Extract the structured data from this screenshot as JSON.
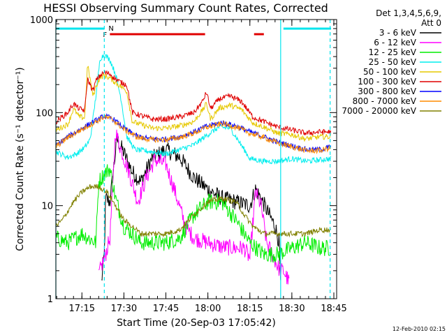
{
  "chart_data": {
    "type": "line",
    "title": "HESSI Observing Summary Count Rates, Corrected",
    "xlabel": "Start Time (20-Sep-03 17:05:42)",
    "ylabel": "Corrected Count Rate (s⁻¹ detector⁻¹)",
    "yscale": "log",
    "ylim": [
      1,
      1000
    ],
    "xlim": [
      "17:05:42",
      "18:46:00"
    ],
    "yticks": [
      {
        "v": 1,
        "label": "1"
      },
      {
        "v": 10,
        "label": "10"
      },
      {
        "v": 100,
        "label": "100"
      },
      {
        "v": 1000,
        "label": "1000"
      }
    ],
    "xticks": [
      {
        "t": "17:15",
        "label": "17:15"
      },
      {
        "t": "17:30",
        "label": "17:30"
      },
      {
        "t": "17:45",
        "label": "17:45"
      },
      {
        "t": "18:00",
        "label": "18:00"
      },
      {
        "t": "18:15",
        "label": "18:15"
      },
      {
        "t": "18:30",
        "label": "18:30"
      },
      {
        "t": "18:45",
        "label": "18:45"
      }
    ],
    "legend_header": [
      "Det 1,3,4,5,6,9,",
      "Att 0"
    ],
    "legend_position": "right",
    "footer_date": "12-Feb-2010 02:15",
    "flag_bars": [
      {
        "label": "",
        "color": "#00e5ee",
        "segments": [
          [
            "17:05:42",
            "17:23:00"
          ],
          [
            "18:27:00",
            "18:44:00"
          ]
        ]
      },
      {
        "label": "F",
        "color": "#e00000",
        "segments": [
          [
            "17:25:00",
            "17:59:00"
          ],
          [
            "18:16:30",
            "18:20:00"
          ]
        ]
      }
    ],
    "flag_markers": [
      {
        "label": "N",
        "t": "17:25:30",
        "color": "#00e5ee"
      }
    ],
    "vlines": [
      {
        "t": "17:05:42",
        "color": "#00e5ee",
        "style": "solid"
      },
      {
        "t": "17:23:00",
        "color": "#00e5ee",
        "style": "dashed"
      },
      {
        "t": "18:26:00",
        "color": "#00e5ee",
        "style": "solid"
      },
      {
        "t": "18:43:40",
        "color": "#00e5ee",
        "style": "dashed"
      }
    ],
    "series": [
      {
        "name": "3 - 6 keV",
        "color": "#000000",
        "t0": "17:22:00",
        "times": [
          "17:22:00",
          "17:23:00",
          "17:23:30",
          "17:25:00",
          "17:27:30",
          "17:30:00",
          "17:33:00",
          "17:36:00",
          "17:40:00",
          "17:45:00",
          "17:50:00",
          "17:55:00",
          "18:00:00",
          "18:05:00",
          "18:10:00",
          "18:15:00",
          "18:17:00",
          "18:19:00",
          "18:21:00",
          "18:24:00",
          "18:25:30",
          "18:26:00"
        ],
        "values": [
          1.5,
          3,
          12,
          11,
          52,
          37,
          23,
          18,
          32,
          40,
          33,
          20,
          15,
          12,
          11,
          10,
          15,
          12,
          9,
          6,
          4,
          1.3
        ]
      },
      {
        "name": "6 - 12 keV",
        "color": "#ff00ff",
        "t0": "17:21:00",
        "times": [
          "17:21:00",
          "17:22:30",
          "17:23:30",
          "17:25:00",
          "17:27:00",
          "17:29:00",
          "17:32:00",
          "17:35:00",
          "17:38:00",
          "17:41:00",
          "17:45:00",
          "17:48:00",
          "17:52:00",
          "17:55:00",
          "18:00:00",
          "18:05:00",
          "18:10:00",
          "18:13:00",
          "18:15:00",
          "18:17:00",
          "18:19:00",
          "18:21:00",
          "18:23:00",
          "18:25:00",
          "18:26:00",
          "18:27:00",
          "18:29:00"
        ],
        "values": [
          1.8,
          2.5,
          3,
          4.5,
          62,
          40,
          22,
          11,
          20,
          31,
          28,
          15,
          6,
          4.5,
          4,
          3.6,
          3.5,
          3.5,
          2.7,
          14,
          10,
          4,
          3,
          2.2,
          2,
          2,
          1.5
        ]
      },
      {
        "name": "12 - 25 keV",
        "color": "#00ee00",
        "t0": "17:05:42",
        "times": [
          "17:05:42",
          "17:10:00",
          "17:15:00",
          "17:20:00",
          "17:21:00",
          "17:23:00",
          "17:25:00",
          "17:27:00",
          "17:30:00",
          "17:33:00",
          "17:36:00",
          "17:40:00",
          "17:45:00",
          "17:50:00",
          "17:55:00",
          "18:00:00",
          "18:05:00",
          "18:10:00",
          "18:15:00",
          "18:20:00",
          "18:25:00",
          "18:30:00",
          "18:35:00",
          "18:40:00",
          "18:44:00"
        ],
        "values": [
          4.5,
          4,
          5,
          4,
          18,
          22,
          25,
          12,
          6,
          5,
          4,
          4,
          4,
          4.5,
          8,
          11,
          11,
          7,
          4,
          3,
          3,
          3.5,
          4,
          3.5,
          3.5
        ]
      },
      {
        "name": "25 - 50 keV",
        "color": "#00eeee",
        "t0": "17:05:42",
        "times": [
          "17:05:42",
          "17:10:00",
          "17:13:00",
          "17:16:00",
          "17:18:00",
          "17:20:00",
          "17:21:30",
          "17:23:00",
          "17:25:00",
          "17:27:00",
          "17:29:00",
          "17:31:00",
          "17:34:00",
          "17:40:00",
          "17:45:00",
          "17:50:00",
          "17:55:00",
          "18:00:00",
          "18:04:00",
          "18:08:00",
          "18:10:00",
          "18:13:00",
          "18:15:00",
          "18:20:00",
          "18:25:00",
          "18:30:00",
          "18:35:00",
          "18:40:00",
          "18:44:00"
        ],
        "values": [
          38,
          33,
          36,
          42,
          52,
          150,
          380,
          420,
          370,
          260,
          140,
          55,
          40,
          38,
          36,
          40,
          45,
          58,
          70,
          68,
          55,
          40,
          32,
          30,
          30,
          32,
          30,
          31,
          32
        ]
      },
      {
        "name": "50 - 100 keV",
        "color": "#e6c800",
        "t0": "17:05:42",
        "times": [
          "17:05:42",
          "17:10:00",
          "17:12:00",
          "17:14:00",
          "17:16:00",
          "17:17:00",
          "17:19:00",
          "17:20:00",
          "17:21:30",
          "17:23:00",
          "17:25:00",
          "17:27:00",
          "17:29:00",
          "17:31:00",
          "17:33:00",
          "17:40:00",
          "17:45:00",
          "17:50:00",
          "17:55:00",
          "17:58:00",
          "17:59:30",
          "18:01:00",
          "18:04:00",
          "18:08:00",
          "18:12:00",
          "18:16:00",
          "18:20:00",
          "18:25:00",
          "18:30:00",
          "18:35:00",
          "18:40:00",
          "18:44:00"
        ],
        "values": [
          65,
          75,
          110,
          90,
          88,
          330,
          150,
          190,
          240,
          250,
          235,
          210,
          190,
          170,
          80,
          68,
          68,
          72,
          80,
          105,
          125,
          85,
          112,
          120,
          108,
          78,
          70,
          60,
          58,
          52,
          55,
          55
        ]
      },
      {
        "name": "100 - 300 keV",
        "color": "#e00000",
        "t0": "17:05:42",
        "times": [
          "17:05:42",
          "17:10:00",
          "17:12:00",
          "17:14:00",
          "17:16:00",
          "17:17:00",
          "17:19:00",
          "17:20:00",
          "17:21:30",
          "17:23:00",
          "17:25:00",
          "17:27:00",
          "17:29:00",
          "17:31:00",
          "17:33:00",
          "17:40:00",
          "17:45:00",
          "17:50:00",
          "17:55:00",
          "17:58:00",
          "17:59:30",
          "18:01:00",
          "18:04:00",
          "18:08:00",
          "18:12:00",
          "18:16:00",
          "18:20:00",
          "18:25:00",
          "18:30:00",
          "18:35:00",
          "18:40:00",
          "18:44:00"
        ],
        "values": [
          80,
          100,
          125,
          110,
          105,
          230,
          170,
          220,
          250,
          270,
          260,
          230,
          210,
          200,
          100,
          85,
          85,
          90,
          100,
          130,
          165,
          110,
          140,
          150,
          132,
          90,
          80,
          70,
          65,
          60,
          62,
          62
        ]
      },
      {
        "name": "300 - 800 keV",
        "color": "#0000ff",
        "t0": "17:05:42",
        "times": [
          "17:05:42",
          "17:10:00",
          "17:15:00",
          "17:20:00",
          "17:23:00",
          "17:26:00",
          "17:30:00",
          "17:35:00",
          "17:40:00",
          "17:45:00",
          "17:50:00",
          "17:55:00",
          "18:00:00",
          "18:05:00",
          "18:10:00",
          "18:15:00",
          "18:20:00",
          "18:25:00",
          "18:30:00",
          "18:35:00",
          "18:40:00",
          "18:44:00"
        ],
        "values": [
          44,
          55,
          68,
          82,
          92,
          86,
          68,
          55,
          52,
          52,
          55,
          62,
          72,
          78,
          72,
          62,
          55,
          48,
          44,
          40,
          40,
          43
        ]
      },
      {
        "name": "800 - 7000 keV",
        "color": "#ff8c00",
        "t0": "17:05:42",
        "times": [
          "17:05:42",
          "17:10:00",
          "17:15:00",
          "17:20:00",
          "17:23:00",
          "17:26:00",
          "17:30:00",
          "17:35:00",
          "17:40:00",
          "17:45:00",
          "17:50:00",
          "17:55:00",
          "18:00:00",
          "18:05:00",
          "18:10:00",
          "18:15:00",
          "18:20:00",
          "18:25:00",
          "18:30:00",
          "18:35:00",
          "18:40:00",
          "18:44:00"
        ],
        "values": [
          43,
          54,
          66,
          80,
          90,
          84,
          66,
          54,
          51,
          51,
          54,
          60,
          70,
          76,
          70,
          60,
          54,
          47,
          43,
          39,
          39,
          42
        ]
      },
      {
        "name": "7000 - 20000 keV",
        "color": "#808000",
        "t0": "17:05:42",
        "times": [
          "17:05:42",
          "17:08:00",
          "17:12:00",
          "17:15:00",
          "17:18:00",
          "17:21:00",
          "17:24:00",
          "17:27:00",
          "17:30:00",
          "17:33:00",
          "17:36:00",
          "17:40:00",
          "17:45:00",
          "17:50:00",
          "17:55:00",
          "18:00:00",
          "18:05:00",
          "18:10:00",
          "18:13:00",
          "18:16:00",
          "18:20:00",
          "18:25:00",
          "18:30:00",
          "18:35:00",
          "18:40:00",
          "18:44:00"
        ],
        "values": [
          6,
          7,
          11,
          14,
          16,
          16,
          14,
          10,
          7,
          6,
          5,
          5,
          5,
          5.5,
          8,
          11,
          12,
          11,
          8,
          6,
          5,
          5,
          5,
          5,
          5.5,
          5.5
        ]
      }
    ]
  }
}
